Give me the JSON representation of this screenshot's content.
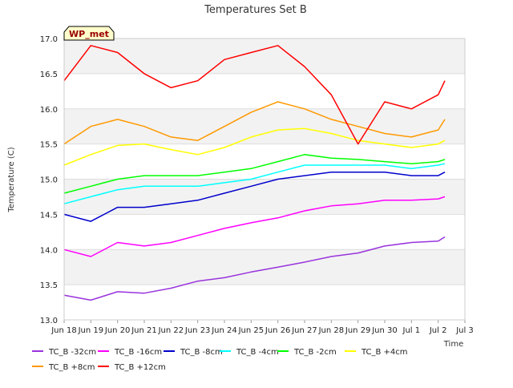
{
  "chart_data": {
    "type": "line",
    "title": "Temperatures Set B",
    "xlabel": "Time",
    "ylabel": "Temperature (C)",
    "badge": "WP_met",
    "ylim": [
      13.0,
      17.0
    ],
    "yticks": [
      13.0,
      13.5,
      14.0,
      14.5,
      15.0,
      15.5,
      16.0,
      16.5,
      17.0
    ],
    "xlim": [
      "2024-06-18",
      "2024-07-03"
    ],
    "xticks": [
      "Jun 18",
      "Jun 19",
      "Jun 20",
      "Jun 21",
      "Jun 22",
      "Jun 23",
      "Jun 24",
      "Jun 25",
      "Jun 26",
      "Jun 27",
      "Jun 28",
      "Jun 29",
      "Jun 30",
      "Jul 1",
      "Jul 2",
      "Jul 3"
    ],
    "grid": true,
    "legend_position": "bottom",
    "series": [
      {
        "name": "TC_B -32cm",
        "color": "#9933dd",
        "x": [
          "2024-06-18",
          "2024-06-19",
          "2024-06-20",
          "2024-06-21",
          "2024-06-22",
          "2024-06-23",
          "2024-06-24",
          "2024-06-25",
          "2024-06-26",
          "2024-06-27",
          "2024-06-28",
          "2024-06-29",
          "2024-06-30",
          "2024-07-01",
          "2024-07-02",
          "2024-07-02T06:00"
        ],
        "y": [
          13.35,
          13.28,
          13.4,
          13.38,
          13.45,
          13.55,
          13.6,
          13.68,
          13.75,
          13.82,
          13.9,
          13.95,
          14.05,
          14.1,
          14.12,
          14.18
        ]
      },
      {
        "name": "TC_B -16cm",
        "color": "#ff00ff",
        "x": [
          "2024-06-18",
          "2024-06-19",
          "2024-06-20",
          "2024-06-21",
          "2024-06-22",
          "2024-06-23",
          "2024-06-24",
          "2024-06-25",
          "2024-06-26",
          "2024-06-27",
          "2024-06-28",
          "2024-06-29",
          "2024-06-30",
          "2024-07-01",
          "2024-07-02",
          "2024-07-02T06:00"
        ],
        "y": [
          14.0,
          13.9,
          14.1,
          14.05,
          14.1,
          14.2,
          14.3,
          14.38,
          14.45,
          14.55,
          14.62,
          14.65,
          14.7,
          14.7,
          14.72,
          14.75
        ]
      },
      {
        "name": "TC_B -8cm",
        "color": "#0000cc",
        "x": [
          "2024-06-18",
          "2024-06-19",
          "2024-06-20",
          "2024-06-21",
          "2024-06-22",
          "2024-06-23",
          "2024-06-24",
          "2024-06-25",
          "2024-06-26",
          "2024-06-27",
          "2024-06-28",
          "2024-06-29",
          "2024-06-30",
          "2024-07-01",
          "2024-07-02",
          "2024-07-02T06:00"
        ],
        "y": [
          14.5,
          14.4,
          14.6,
          14.6,
          14.65,
          14.7,
          14.8,
          14.9,
          15.0,
          15.05,
          15.1,
          15.1,
          15.1,
          15.05,
          15.05,
          15.1
        ]
      },
      {
        "name": "TC_B -4cm",
        "color": "#00ffff",
        "x": [
          "2024-06-18",
          "2024-06-19",
          "2024-06-20",
          "2024-06-21",
          "2024-06-22",
          "2024-06-23",
          "2024-06-24",
          "2024-06-25",
          "2024-06-26",
          "2024-06-27",
          "2024-06-28",
          "2024-06-29",
          "2024-06-30",
          "2024-07-01",
          "2024-07-02",
          "2024-07-02T06:00"
        ],
        "y": [
          14.65,
          14.75,
          14.85,
          14.9,
          14.9,
          14.9,
          14.95,
          15.0,
          15.1,
          15.2,
          15.2,
          15.2,
          15.2,
          15.15,
          15.2,
          15.22
        ]
      },
      {
        "name": "TC_B -2cm",
        "color": "#00ff00",
        "x": [
          "2024-06-18",
          "2024-06-19",
          "2024-06-20",
          "2024-06-21",
          "2024-06-22",
          "2024-06-23",
          "2024-06-24",
          "2024-06-25",
          "2024-06-26",
          "2024-06-27",
          "2024-06-28",
          "2024-06-29",
          "2024-06-30",
          "2024-07-01",
          "2024-07-02",
          "2024-07-02T06:00"
        ],
        "y": [
          14.8,
          14.9,
          15.0,
          15.05,
          15.05,
          15.05,
          15.1,
          15.15,
          15.25,
          15.35,
          15.3,
          15.28,
          15.25,
          15.22,
          15.25,
          15.28
        ]
      },
      {
        "name": "TC_B +4cm",
        "color": "#ffff00",
        "x": [
          "2024-06-18",
          "2024-06-19",
          "2024-06-20",
          "2024-06-21",
          "2024-06-22",
          "2024-06-23",
          "2024-06-24",
          "2024-06-25",
          "2024-06-26",
          "2024-06-27",
          "2024-06-28",
          "2024-06-29",
          "2024-06-30",
          "2024-07-01",
          "2024-07-02",
          "2024-07-02T06:00"
        ],
        "y": [
          15.2,
          15.35,
          15.48,
          15.5,
          15.42,
          15.35,
          15.45,
          15.6,
          15.7,
          15.72,
          15.65,
          15.55,
          15.5,
          15.45,
          15.5,
          15.55
        ]
      },
      {
        "name": "TC_B +8cm",
        "color": "#ff9900",
        "x": [
          "2024-06-18",
          "2024-06-19",
          "2024-06-20",
          "2024-06-21",
          "2024-06-22",
          "2024-06-23",
          "2024-06-24",
          "2024-06-25",
          "2024-06-26",
          "2024-06-27",
          "2024-06-28",
          "2024-06-29",
          "2024-06-30",
          "2024-07-01",
          "2024-07-02",
          "2024-07-02T06:00"
        ],
        "y": [
          15.5,
          15.75,
          15.85,
          15.75,
          15.6,
          15.55,
          15.75,
          15.95,
          16.1,
          16.0,
          15.85,
          15.75,
          15.65,
          15.6,
          15.7,
          15.85
        ]
      },
      {
        "name": "TC_B +12cm",
        "color": "#ff0000",
        "x": [
          "2024-06-18",
          "2024-06-19",
          "2024-06-20",
          "2024-06-21",
          "2024-06-22",
          "2024-06-23",
          "2024-06-24",
          "2024-06-25",
          "2024-06-26",
          "2024-06-27",
          "2024-06-28",
          "2024-06-29",
          "2024-06-30",
          "2024-07-01",
          "2024-07-02",
          "2024-07-02T06:00"
        ],
        "y": [
          16.4,
          16.9,
          16.8,
          16.5,
          16.3,
          16.4,
          16.7,
          16.8,
          16.9,
          16.6,
          16.2,
          15.5,
          16.1,
          16.0,
          16.2,
          16.4
        ]
      }
    ]
  }
}
